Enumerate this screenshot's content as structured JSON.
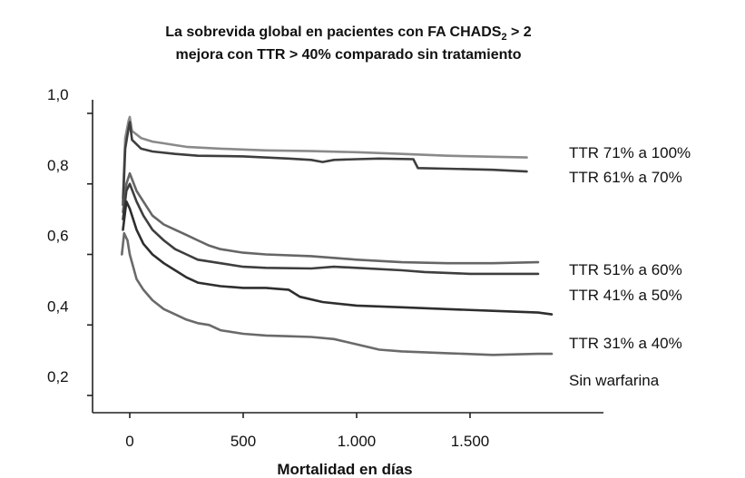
{
  "chart_data": {
    "type": "line",
    "title_line1": "La sobrevida global en pacientes con FA CHADS",
    "title_sub": "2",
    "title_line1_end": " > 2",
    "title_line2": "mejora con TTR > 40% comparado sin tratamiento",
    "xlabel": "Mortalidad en días",
    "ylabel": "",
    "xlim": [
      -150,
      2100
    ],
    "ylim": [
      0.2,
      1.0
    ],
    "x_ticks": [
      0,
      500,
      1000,
      1500
    ],
    "x_tick_labels": [
      "0",
      "500",
      "1.000",
      "1.500"
    ],
    "y_ticks": [
      0.2,
      0.4,
      0.6,
      0.8,
      1.0
    ],
    "y_tick_labels": [
      "0,2",
      "0,4",
      "0,6",
      "0,8",
      "1,0"
    ],
    "grid": false,
    "series": [
      {
        "name": "TTR 71% a 100%",
        "color": "#8a8a8a",
        "points": [
          [
            -30,
            0.76
          ],
          [
            -20,
            0.93
          ],
          [
            -5,
            0.98
          ],
          [
            0,
            0.99
          ],
          [
            10,
            0.95
          ],
          [
            50,
            0.93
          ],
          [
            100,
            0.92
          ],
          [
            150,
            0.915
          ],
          [
            200,
            0.91
          ],
          [
            250,
            0.905
          ],
          [
            400,
            0.9
          ],
          [
            600,
            0.895
          ],
          [
            800,
            0.893
          ],
          [
            1000,
            0.89
          ],
          [
            1200,
            0.885
          ],
          [
            1400,
            0.88
          ],
          [
            1600,
            0.877
          ],
          [
            1750,
            0.875
          ]
        ]
      },
      {
        "name": "TTR 61% a 70%",
        "color": "#3e3e3e",
        "points": [
          [
            -30,
            0.74
          ],
          [
            -20,
            0.9
          ],
          [
            -5,
            0.96
          ],
          [
            0,
            0.975
          ],
          [
            10,
            0.925
          ],
          [
            50,
            0.9
          ],
          [
            100,
            0.892
          ],
          [
            200,
            0.885
          ],
          [
            300,
            0.88
          ],
          [
            500,
            0.878
          ],
          [
            700,
            0.872
          ],
          [
            800,
            0.868
          ],
          [
            850,
            0.862
          ],
          [
            900,
            0.868
          ],
          [
            1000,
            0.87
          ],
          [
            1100,
            0.872
          ],
          [
            1250,
            0.87
          ],
          [
            1270,
            0.845
          ],
          [
            1400,
            0.843
          ],
          [
            1600,
            0.84
          ],
          [
            1750,
            0.835
          ]
        ]
      },
      {
        "name": "TTR 51% a 60%",
        "color": "#666666",
        "points": [
          [
            -30,
            0.72
          ],
          [
            -15,
            0.8
          ],
          [
            0,
            0.83
          ],
          [
            30,
            0.78
          ],
          [
            60,
            0.75
          ],
          [
            100,
            0.71
          ],
          [
            150,
            0.685
          ],
          [
            200,
            0.67
          ],
          [
            250,
            0.655
          ],
          [
            300,
            0.64
          ],
          [
            350,
            0.625
          ],
          [
            400,
            0.615
          ],
          [
            500,
            0.605
          ],
          [
            600,
            0.6
          ],
          [
            800,
            0.595
          ],
          [
            1000,
            0.585
          ],
          [
            1200,
            0.578
          ],
          [
            1400,
            0.575
          ],
          [
            1600,
            0.575
          ],
          [
            1800,
            0.578
          ]
        ]
      },
      {
        "name": "TTR 41% a 50%",
        "color": "#3e3e3e",
        "points": [
          [
            -30,
            0.7
          ],
          [
            -15,
            0.78
          ],
          [
            0,
            0.8
          ],
          [
            30,
            0.75
          ],
          [
            60,
            0.71
          ],
          [
            100,
            0.67
          ],
          [
            150,
            0.64
          ],
          [
            200,
            0.615
          ],
          [
            250,
            0.6
          ],
          [
            300,
            0.585
          ],
          [
            400,
            0.575
          ],
          [
            500,
            0.565
          ],
          [
            600,
            0.562
          ],
          [
            800,
            0.56
          ],
          [
            900,
            0.565
          ],
          [
            1000,
            0.562
          ],
          [
            1200,
            0.555
          ],
          [
            1300,
            0.55
          ],
          [
            1500,
            0.545
          ],
          [
            1800,
            0.545
          ]
        ]
      },
      {
        "name": "TTR 31% a 40%",
        "color": "#2e2e2e",
        "points": [
          [
            -30,
            0.67
          ],
          [
            -15,
            0.75
          ],
          [
            0,
            0.73
          ],
          [
            30,
            0.67
          ],
          [
            60,
            0.63
          ],
          [
            100,
            0.6
          ],
          [
            150,
            0.575
          ],
          [
            200,
            0.555
          ],
          [
            250,
            0.535
          ],
          [
            300,
            0.52
          ],
          [
            400,
            0.51
          ],
          [
            500,
            0.505
          ],
          [
            600,
            0.505
          ],
          [
            700,
            0.5
          ],
          [
            750,
            0.48
          ],
          [
            850,
            0.465
          ],
          [
            1000,
            0.455
          ],
          [
            1200,
            0.45
          ],
          [
            1400,
            0.445
          ],
          [
            1600,
            0.44
          ],
          [
            1800,
            0.435
          ],
          [
            1860,
            0.43
          ]
        ]
      },
      {
        "name": "Sin warfarina",
        "color": "#6a6a6a",
        "points": [
          [
            -35,
            0.6
          ],
          [
            -25,
            0.66
          ],
          [
            -10,
            0.64
          ],
          [
            0,
            0.6
          ],
          [
            30,
            0.53
          ],
          [
            60,
            0.5
          ],
          [
            100,
            0.47
          ],
          [
            150,
            0.445
          ],
          [
            200,
            0.43
          ],
          [
            250,
            0.415
          ],
          [
            300,
            0.405
          ],
          [
            350,
            0.4
          ],
          [
            400,
            0.385
          ],
          [
            500,
            0.375
          ],
          [
            600,
            0.37
          ],
          [
            700,
            0.368
          ],
          [
            800,
            0.366
          ],
          [
            900,
            0.36
          ],
          [
            1000,
            0.345
          ],
          [
            1100,
            0.33
          ],
          [
            1200,
            0.325
          ],
          [
            1400,
            0.32
          ],
          [
            1600,
            0.315
          ],
          [
            1800,
            0.318
          ],
          [
            1860,
            0.318
          ]
        ]
      }
    ]
  }
}
